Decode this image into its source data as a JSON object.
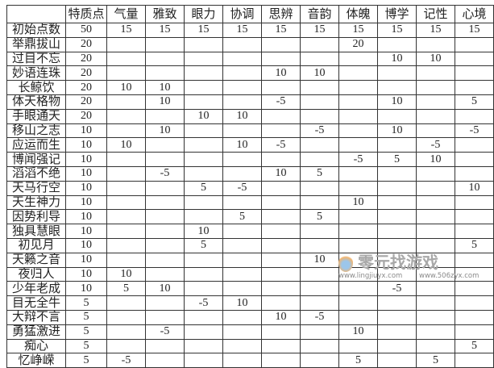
{
  "table": {
    "headers": [
      "",
      "特质点",
      "气量",
      "雅致",
      "眼力",
      "协调",
      "思辨",
      "音韵",
      "体魄",
      "博学",
      "记性",
      "心境"
    ],
    "rows": [
      [
        "初始点数",
        "50",
        "15",
        "15",
        "15",
        "15",
        "15",
        "15",
        "15",
        "15",
        "15",
        "15"
      ],
      [
        "举鼎拔山",
        "20",
        "",
        "",
        "",
        "",
        "",
        "",
        "20",
        "",
        "",
        ""
      ],
      [
        "过目不忘",
        "20",
        "",
        "",
        "",
        "",
        "",
        "",
        "",
        "10",
        "10",
        ""
      ],
      [
        "妙语连珠",
        "20",
        "",
        "",
        "",
        "",
        "10",
        "10",
        "",
        "",
        "",
        ""
      ],
      [
        "长鲸饮",
        "20",
        "10",
        "10",
        "",
        "",
        "",
        "",
        "",
        "",
        "",
        ""
      ],
      [
        "体天格物",
        "20",
        "",
        "10",
        "",
        "",
        "-5",
        "",
        "",
        "10",
        "",
        "5"
      ],
      [
        "手眼通天",
        "20",
        "",
        "",
        "10",
        "10",
        "",
        "",
        "",
        "",
        "",
        ""
      ],
      [
        "移山之志",
        "10",
        "",
        "10",
        "",
        "",
        "",
        "-5",
        "",
        "10",
        "",
        "-5"
      ],
      [
        "应运而生",
        "10",
        "10",
        "",
        "",
        "10",
        "-5",
        "",
        "",
        "",
        "-5",
        ""
      ],
      [
        "博闻强记",
        "10",
        "",
        "",
        "",
        "",
        "",
        "",
        "-5",
        "5",
        "10",
        ""
      ],
      [
        "滔滔不绝",
        "10",
        "",
        "-5",
        "",
        "",
        "10",
        "5",
        "",
        "",
        "",
        ""
      ],
      [
        "天马行空",
        "10",
        "",
        "",
        "5",
        "-5",
        "",
        "",
        "",
        "",
        "",
        "10"
      ],
      [
        "天生神力",
        "10",
        "",
        "",
        "",
        "",
        "",
        "",
        "10",
        "",
        "",
        ""
      ],
      [
        "因势利导",
        "10",
        "",
        "",
        "",
        "5",
        "",
        "5",
        "",
        "",
        "",
        ""
      ],
      [
        "独具慧眼",
        "10",
        "",
        "",
        "10",
        "",
        "",
        "",
        "",
        "",
        "",
        ""
      ],
      [
        "初见月",
        "10",
        "",
        "",
        "5",
        "",
        "",
        "",
        "",
        "",
        "",
        "5"
      ],
      [
        "天籁之音",
        "10",
        "",
        "",
        "",
        "",
        "",
        "10",
        "",
        "",
        "",
        ""
      ],
      [
        "夜归人",
        "10",
        "10",
        "",
        "",
        "",
        "",
        "",
        "",
        "",
        "",
        ""
      ],
      [
        "少年老成",
        "10",
        "5",
        "10",
        "",
        "",
        "",
        "",
        "",
        "-5",
        "",
        ""
      ],
      [
        "目无全牛",
        "5",
        "",
        "",
        "-5",
        "10",
        "",
        "",
        "",
        "",
        "",
        ""
      ],
      [
        "大辩不言",
        "5",
        "",
        "",
        "",
        "",
        "10",
        "-5",
        "",
        "",
        "",
        ""
      ],
      [
        "勇猛激进",
        "5",
        "",
        "-5",
        "",
        "",
        "",
        "",
        "10",
        "",
        "",
        ""
      ],
      [
        "痴心",
        "5",
        "",
        "",
        "",
        "",
        "",
        "",
        "",
        "",
        "",
        "5"
      ],
      [
        "忆峥嵘",
        "5",
        "-5",
        "",
        "",
        "",
        "",
        "",
        "5",
        "",
        "5",
        ""
      ]
    ]
  },
  "watermark": {
    "title": "零元找游戏",
    "url1": "www.lingjiuyx.com",
    "url2": "www.506zyx.com"
  }
}
